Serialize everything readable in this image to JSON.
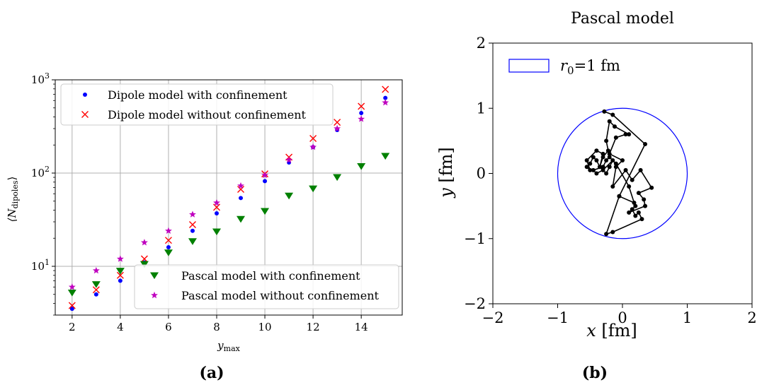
{
  "chart_data": [
    {
      "type": "scatter",
      "caption": "(a)",
      "xlabel": "y",
      "xlabel_sub": "max",
      "ylabel": "⟨N",
      "ylabel_sub": "dipoles",
      "ylabel_end": "⟩",
      "y_scale": "log",
      "xlim": [
        1.3,
        15.7
      ],
      "ylim": [
        3.0,
        1000
      ],
      "x_ticks": [
        2,
        4,
        6,
        8,
        10,
        12,
        14
      ],
      "y_ticks": [
        {
          "value": 10,
          "base": "10",
          "exp": "1"
        },
        {
          "value": 100,
          "base": "10",
          "exp": "2"
        },
        {
          "value": 1000,
          "base": "10",
          "exp": "3"
        }
      ],
      "grid": true,
      "x": [
        2,
        3,
        4,
        5,
        6,
        7,
        8,
        9,
        10,
        11,
        12,
        13,
        14,
        15
      ],
      "series": [
        {
          "name": "Dipole model with confinement",
          "marker": "dot",
          "color": "#0000ff",
          "values": [
            3.5,
            5.0,
            7.0,
            11.0,
            16.0,
            24.0,
            37.0,
            54.0,
            82.0,
            130.0,
            190.0,
            290.0,
            440.0,
            640.0
          ]
        },
        {
          "name": "Dipole model without confinement",
          "marker": "x",
          "color": "#ff0000",
          "values": [
            3.8,
            5.6,
            8.0,
            12.0,
            19.0,
            28.0,
            43.0,
            67.0,
            98.0,
            148.0,
            235.0,
            350.0,
            520.0,
            790.0
          ]
        },
        {
          "name": "Pascal model with confinement",
          "marker": "triangle-down",
          "color": "#008000",
          "values": [
            5.2,
            6.4,
            8.9,
            10.5,
            14.0,
            18.5,
            23.5,
            32.0,
            39.0,
            57.0,
            68.0,
            90.0,
            118.0,
            152.0
          ]
        },
        {
          "name": "Pascal model without confinement",
          "marker": "star",
          "color": "#bf00bf",
          "values": [
            6.0,
            9.0,
            12.0,
            18.0,
            24.0,
            36.0,
            48.0,
            73.0,
            95.0,
            138.0,
            190.0,
            300.0,
            380.0,
            570.0
          ]
        }
      ],
      "legends": [
        {
          "placement": "upper-left",
          "entries": [
            0,
            1
          ]
        },
        {
          "placement": "lower-right",
          "entries": [
            2,
            3
          ]
        }
      ]
    },
    {
      "type": "scatter",
      "caption": "(b)",
      "title": "Pascal model",
      "xlabel": "x",
      "xlabel_unit": " [fm]",
      "ylabel": "y",
      "ylabel_unit": " [fm]",
      "xlim": [
        -2,
        2
      ],
      "ylim": [
        -2,
        2
      ],
      "x_ticks": [
        "−2",
        "−1",
        "0",
        "1",
        "2"
      ],
      "y_ticks": [
        "−2",
        "−1",
        "0",
        "1",
        "2"
      ],
      "grid": false,
      "circle": {
        "cx": 0,
        "cy": 0,
        "r": 1,
        "color": "#0000ff",
        "legend_r": "r",
        "legend_sub": "0",
        "legend_value": "=1 fm",
        "legend_placement": "upper-left"
      },
      "path_color": "#000000",
      "path": [
        [
          -0.28,
          0.95
        ],
        [
          -0.15,
          0.9
        ],
        [
          0.35,
          0.45
        ],
        [
          -0.05,
          -0.35
        ],
        [
          -0.25,
          -0.93
        ],
        [
          -0.15,
          -0.9
        ],
        [
          0.3,
          -0.7
        ],
        [
          0.25,
          -0.6
        ],
        [
          0.2,
          -0.65
        ],
        [
          0.15,
          -0.55
        ],
        [
          0.2,
          -0.5
        ],
        [
          0.1,
          -0.6
        ],
        [
          0.35,
          -0.5
        ],
        [
          0.33,
          -0.4
        ],
        [
          0.25,
          -0.3
        ],
        [
          0.45,
          -0.22
        ],
        [
          0.28,
          0.05
        ],
        [
          0.15,
          -0.1
        ],
        [
          0.05,
          0.05
        ],
        [
          -0.15,
          -0.2
        ],
        [
          -0.1,
          0.1
        ],
        [
          0.0,
          0.2
        ],
        [
          -0.2,
          0.3
        ],
        [
          -0.1,
          0.55
        ],
        [
          0.05,
          0.6
        ],
        [
          0.1,
          0.6
        ],
        [
          -0.12,
          0.72
        ],
        [
          -0.2,
          0.8
        ],
        [
          -0.25,
          0.5
        ],
        [
          -0.22,
          0.35
        ],
        [
          -0.3,
          0.25
        ],
        [
          -0.35,
          0.1
        ],
        [
          -0.4,
          0.2
        ],
        [
          -0.45,
          0.25
        ],
        [
          -0.5,
          0.15
        ],
        [
          -0.55,
          0.1
        ],
        [
          -0.5,
          0.05
        ],
        [
          -0.55,
          0.2
        ],
        [
          -0.4,
          0.35
        ],
        [
          -0.3,
          0.3
        ],
        [
          -0.35,
          0.1
        ],
        [
          -0.25,
          0.0
        ],
        [
          -0.2,
          0.1
        ],
        [
          -0.15,
          0.2
        ],
        [
          -0.3,
          0.05
        ],
        [
          -0.4,
          0.0
        ],
        [
          -0.45,
          0.05
        ],
        [
          -0.3,
          0.1
        ],
        [
          -0.25,
          0.2
        ],
        [
          -0.2,
          0.25
        ],
        [
          -0.1,
          0.15
        ],
        [
          0.1,
          -0.2
        ],
        [
          0.18,
          -0.45
        ],
        [
          -0.05,
          -0.35
        ]
      ]
    }
  ]
}
